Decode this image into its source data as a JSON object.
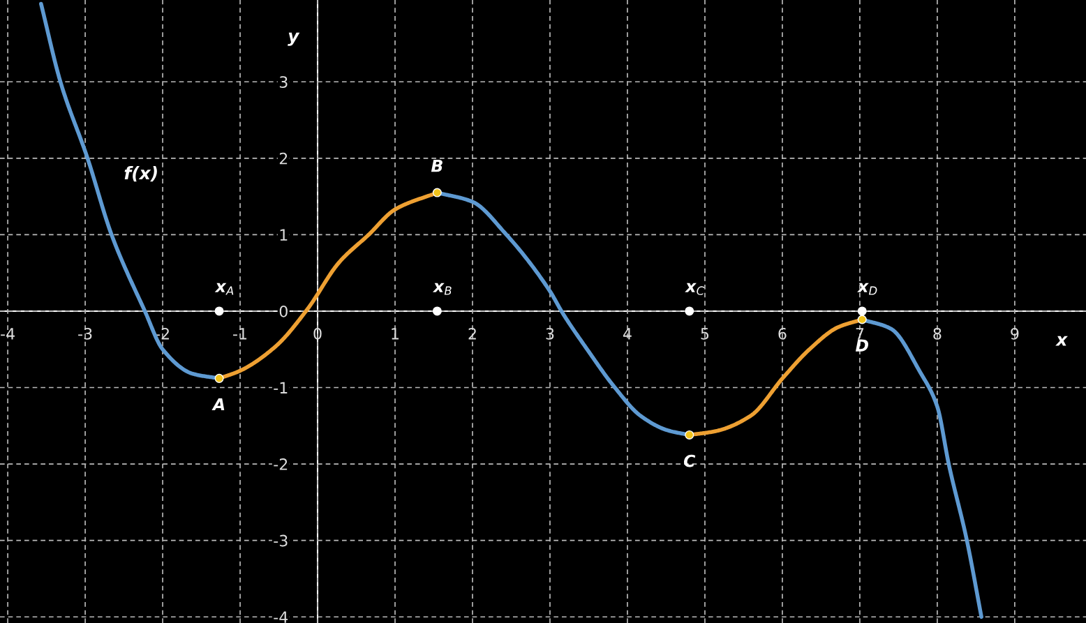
{
  "chart_data": {
    "type": "line",
    "xlabel": "x",
    "ylabel": "y",
    "xlim": [
      -4.1,
      9.92
    ],
    "ylim": [
      -4.08,
      4.07
    ],
    "xticks": [
      -4,
      -3,
      -2,
      -1,
      0,
      1,
      2,
      3,
      4,
      5,
      6,
      7,
      8,
      9
    ],
    "yticks": [
      -4,
      -3,
      -2,
      -1,
      0,
      1,
      2,
      3
    ],
    "grid": true,
    "line_style": "solid",
    "annotations": [
      "f(x)"
    ],
    "series": [
      {
        "color": "#5e9ad2",
        "x": [
          -3.57,
          -3.32,
          -2.97,
          -2.66,
          -2.23,
          -2.0,
          -1.61,
          -1.27
        ],
        "values": [
          4.02,
          3.0,
          2.0,
          1.0,
          0.0,
          -0.5,
          -0.82,
          -0.88
        ]
      },
      {
        "color": "#eea032",
        "x": [
          -1.27,
          -1.0,
          -0.54,
          -0.135,
          0.28,
          0.66,
          1.0,
          1.544
        ],
        "values": [
          -0.88,
          -0.78,
          -0.46,
          0.02,
          0.64,
          1.0,
          1.33,
          1.55
        ]
      },
      {
        "color": "#5e9ad2",
        "x": [
          1.544,
          2.0,
          2.42,
          3.0,
          3.16,
          3.48,
          3.83,
          4.17,
          4.52,
          4.8
        ],
        "values": [
          1.55,
          1.43,
          1.02,
          0.26,
          -0.02,
          -0.5,
          -0.99,
          -1.37,
          -1.56,
          -1.62
        ]
      },
      {
        "color": "#eea032",
        "x": [
          4.8,
          5.14,
          5.59,
          6.01,
          6.35,
          6.72,
          7.03
        ],
        "values": [
          -1.62,
          -1.57,
          -1.37,
          -0.87,
          -0.5,
          -0.21,
          -0.11
        ]
      },
      {
        "color": "#5e9ad2",
        "x": [
          7.03,
          7.4,
          7.78,
          8.0,
          8.15,
          8.38,
          8.57
        ],
        "values": [
          -0.11,
          -0.23,
          -0.8,
          -1.25,
          -2.01,
          -2.99,
          -4.0
        ]
      },
      {
        "type": "scatter",
        "marker": "circle",
        "color": "#f2c41c",
        "x": [
          -1.27,
          1.544,
          4.8,
          7.03
        ],
        "values": [
          -0.88,
          1.55,
          -1.62,
          -0.11
        ],
        "value_labels": [
          "A",
          "B",
          "C",
          "D"
        ]
      },
      {
        "type": "scatter",
        "marker": "circle",
        "color": "#ffffff",
        "x": [
          -1.27,
          1.544,
          4.8,
          7.03
        ],
        "values": [
          0,
          0,
          0,
          0
        ],
        "value_labels": [
          "x$_{A}$",
          "x$_{B}$",
          "x$_{C}$",
          "x$_{D}$"
        ]
      }
    ]
  }
}
